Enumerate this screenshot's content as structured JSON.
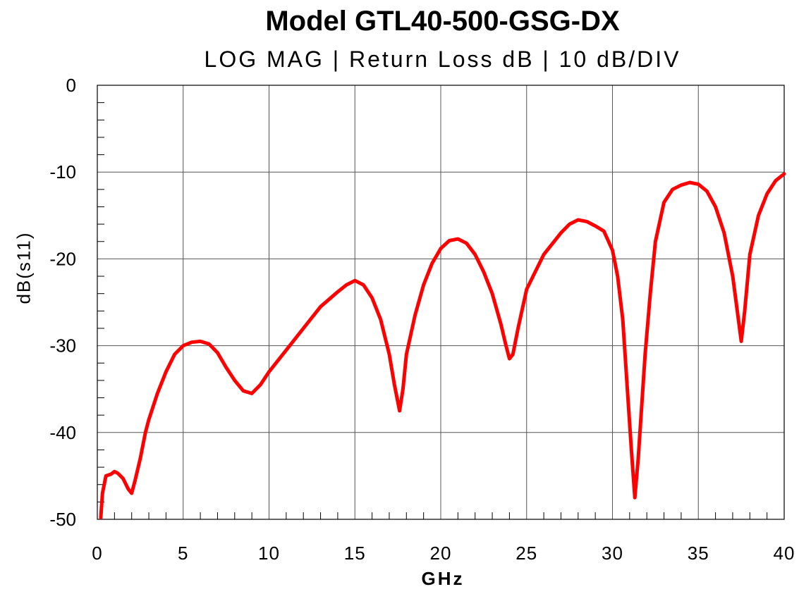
{
  "chart_data": {
    "type": "line",
    "title": "Model GTL40-500-GSG-DX",
    "subtitle": "LOG MAG  |  Return Loss dB  |  10 dB/DIV",
    "xlabel": "GHz",
    "ylabel": "dB(s11)",
    "xlim": [
      0,
      40
    ],
    "ylim": [
      -50,
      0
    ],
    "x_ticks": [
      0,
      5,
      10,
      15,
      20,
      25,
      30,
      35,
      40
    ],
    "y_ticks": [
      0,
      -10,
      -20,
      -30,
      -40,
      -50
    ],
    "x_tick_labels": [
      "0",
      "5",
      "10",
      "15",
      "20",
      "25",
      "30",
      "35",
      "40"
    ],
    "y_tick_labels": [
      "0",
      "-10",
      "-20",
      "-30",
      "-40",
      "-50"
    ],
    "x_minor_step": 1,
    "y_minor_step": 2,
    "grid": true,
    "line_color": "#ff0000",
    "series": [
      {
        "name": "dB(s11)",
        "x": [
          0.2,
          0.3,
          0.5,
          0.8,
          1.0,
          1.2,
          1.5,
          1.8,
          2.0,
          2.2,
          2.5,
          2.8,
          3.0,
          3.5,
          4.0,
          4.5,
          5.0,
          5.5,
          6.0,
          6.5,
          7.0,
          7.5,
          8.0,
          8.5,
          9.0,
          9.5,
          10.0,
          11.0,
          12.0,
          13.0,
          14.0,
          14.5,
          15.0,
          15.5,
          16.0,
          16.5,
          17.0,
          17.3,
          17.6,
          17.8,
          18.0,
          18.5,
          19.0,
          19.5,
          20.0,
          20.5,
          21.0,
          21.5,
          22.0,
          22.5,
          23.0,
          23.5,
          23.8,
          24.0,
          24.2,
          24.5,
          25.0,
          26.0,
          27.0,
          27.5,
          28.0,
          28.5,
          29.0,
          29.5,
          30.0,
          30.3,
          30.6,
          30.9,
          31.1,
          31.3,
          31.5,
          31.7,
          31.9,
          32.2,
          32.5,
          33.0,
          33.5,
          34.0,
          34.5,
          35.0,
          35.5,
          36.0,
          36.5,
          37.0,
          37.3,
          37.5,
          37.7,
          38.0,
          38.5,
          39.0,
          39.5,
          40.0
        ],
        "values": [
          -49.8,
          -47.0,
          -45.0,
          -44.8,
          -44.5,
          -44.7,
          -45.3,
          -46.5,
          -47.0,
          -45.5,
          -43.0,
          -40.0,
          -38.5,
          -35.5,
          -33.0,
          -31.0,
          -30.0,
          -29.6,
          -29.5,
          -29.8,
          -30.8,
          -32.5,
          -34.0,
          -35.2,
          -35.5,
          -34.5,
          -33.0,
          -30.5,
          -28.0,
          -25.5,
          -23.8,
          -23.0,
          -22.5,
          -23.0,
          -24.5,
          -27.0,
          -31.0,
          -34.5,
          -37.5,
          -35.0,
          -31.0,
          -26.5,
          -23.0,
          -20.5,
          -18.8,
          -17.9,
          -17.7,
          -18.2,
          -19.5,
          -21.5,
          -24.0,
          -27.5,
          -30.0,
          -31.5,
          -31.0,
          -28.0,
          -23.5,
          -19.5,
          -17.0,
          -16.0,
          -15.5,
          -15.7,
          -16.2,
          -16.8,
          -19.0,
          -22.0,
          -27.0,
          -36.0,
          -42.0,
          -47.5,
          -43.0,
          -37.0,
          -31.0,
          -24.0,
          -18.0,
          -13.5,
          -12.0,
          -11.5,
          -11.2,
          -11.4,
          -12.2,
          -14.0,
          -17.0,
          -22.0,
          -26.5,
          -29.5,
          -26.0,
          -19.5,
          -15.0,
          -12.5,
          -11.0,
          -10.2
        ]
      }
    ]
  }
}
